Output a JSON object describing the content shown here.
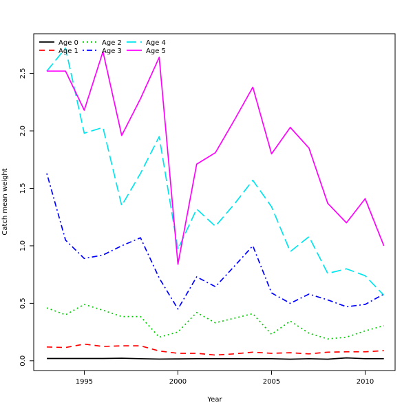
{
  "chart_data": {
    "type": "line",
    "title": "",
    "xlabel": "Year",
    "ylabel": "Catch mean weight",
    "xlim": [
      1992.3,
      2011.6
    ],
    "ylim": [
      -0.085,
      2.845
    ],
    "xticks": [
      1995,
      2000,
      2005,
      2010
    ],
    "yticks": [
      0.0,
      0.5,
      1.0,
      1.5,
      2.0,
      2.5
    ],
    "ytick_labels": [
      "0.0",
      "0.5",
      "1.0",
      "1.5",
      "2.0",
      "2.5"
    ],
    "grid": false,
    "legend_position": "top-left",
    "x": [
      1993,
      1994,
      1995,
      1996,
      1997,
      1998,
      1999,
      2000,
      2001,
      2002,
      2003,
      2004,
      2005,
      2006,
      2007,
      2008,
      2009,
      2010,
      2011
    ],
    "series": [
      {
        "name": "Age 0",
        "color": "#000000",
        "dash": "solid",
        "values": [
          0.02,
          0.02,
          0.02,
          0.02,
          0.022,
          0.018,
          0.015,
          0.016,
          0.018,
          0.018,
          0.018,
          0.018,
          0.018,
          0.014,
          0.018,
          0.014,
          0.025,
          0.018,
          0.018
        ]
      },
      {
        "name": "Age 1",
        "color": "#ff0000",
        "dash": "dashed",
        "values": [
          0.12,
          0.115,
          0.145,
          0.125,
          0.13,
          0.13,
          0.085,
          0.065,
          0.065,
          0.05,
          0.06,
          0.075,
          0.065,
          0.07,
          0.06,
          0.075,
          0.078,
          0.078,
          0.088
        ]
      },
      {
        "name": "Age 2",
        "color": "#00cd00",
        "dash": "dotted",
        "values": [
          0.46,
          0.4,
          0.49,
          0.44,
          0.385,
          0.385,
          0.205,
          0.25,
          0.42,
          0.33,
          0.37,
          0.41,
          0.23,
          0.345,
          0.24,
          0.19,
          0.205,
          0.26,
          0.305
        ]
      },
      {
        "name": "Age 3",
        "color": "#0000ff",
        "dash": "dotdash",
        "values": [
          1.63,
          1.05,
          0.89,
          0.92,
          1.0,
          1.07,
          0.72,
          0.45,
          0.73,
          0.645,
          0.82,
          1.0,
          0.59,
          0.5,
          0.58,
          0.53,
          0.47,
          0.49,
          0.58
        ]
      },
      {
        "name": "Age 4",
        "color": "#00e5ee",
        "dash": "longdash",
        "values": [
          2.52,
          2.72,
          1.98,
          2.03,
          1.35,
          1.63,
          1.95,
          0.97,
          1.32,
          1.17,
          1.36,
          1.57,
          1.34,
          0.95,
          1.08,
          0.76,
          0.8,
          0.74,
          0.57
        ]
      },
      {
        "name": "Age 5",
        "color": "#ff00ff",
        "dash": "solid",
        "values": [
          2.52,
          2.52,
          2.18,
          2.69,
          1.96,
          2.28,
          2.64,
          0.84,
          1.71,
          1.81,
          2.09,
          2.38,
          1.8,
          2.03,
          1.85,
          1.37,
          1.2,
          1.41,
          1.0
        ]
      }
    ]
  }
}
